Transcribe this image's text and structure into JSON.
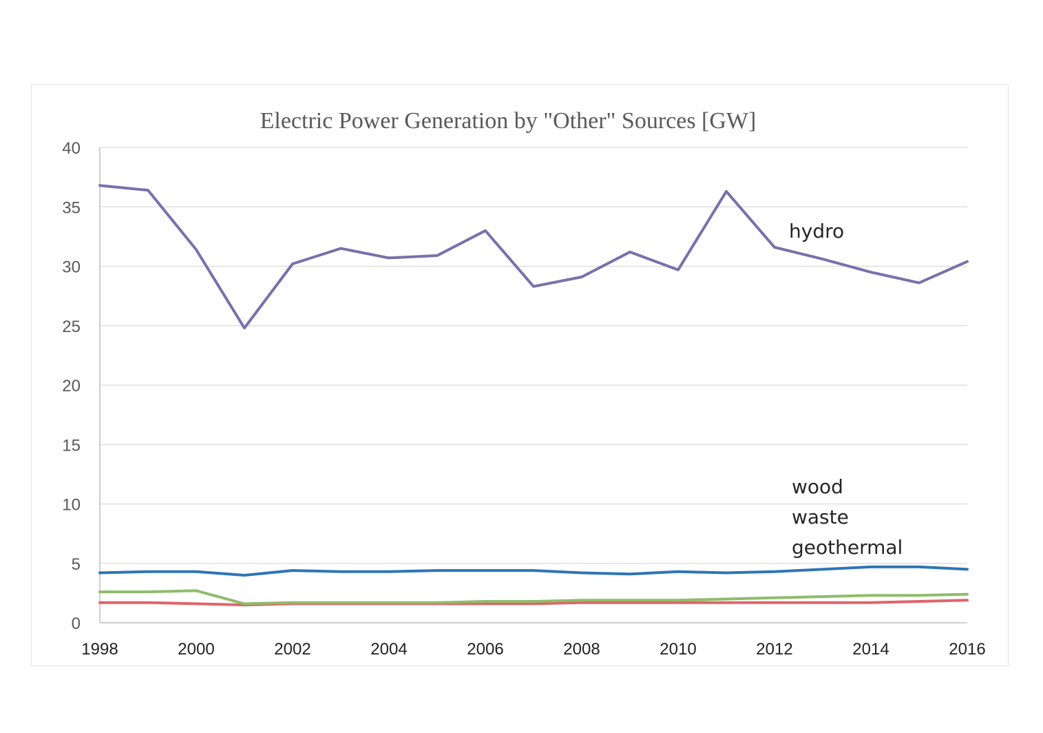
{
  "chart_data": {
    "type": "line",
    "title": "Electric Power Generation by \"Other\" Sources [GW]",
    "xlabel": "",
    "ylabel": "",
    "x": [
      1998,
      1999,
      2000,
      2001,
      2002,
      2003,
      2004,
      2005,
      2006,
      2007,
      2008,
      2009,
      2010,
      2011,
      2012,
      2013,
      2014,
      2015,
      2016
    ],
    "x_tick_labels": [
      "1998",
      "2000",
      "2002",
      "2004",
      "2006",
      "2008",
      "2010",
      "2012",
      "2014",
      "2016"
    ],
    "y_tick_labels": [
      "0",
      "5",
      "10",
      "15",
      "20",
      "25",
      "30",
      "35",
      "40"
    ],
    "xlim": [
      1998,
      2016
    ],
    "ylim": [
      0,
      40
    ],
    "grid": true,
    "legend": "none",
    "series": [
      {
        "name": "hydro",
        "color": "#7b6fab",
        "values": [
          36.8,
          36.4,
          31.4,
          24.8,
          30.2,
          31.5,
          30.7,
          30.9,
          33.0,
          28.3,
          29.1,
          31.2,
          29.7,
          36.3,
          31.6,
          30.6,
          29.5,
          28.6,
          30.4
        ]
      },
      {
        "name": "wood",
        "color": "#2e75b6",
        "values": [
          4.2,
          4.3,
          4.3,
          4.0,
          4.4,
          4.3,
          4.3,
          4.4,
          4.4,
          4.4,
          4.2,
          4.1,
          4.3,
          4.2,
          4.3,
          4.5,
          4.7,
          4.7,
          4.5
        ]
      },
      {
        "name": "waste",
        "color": "#8fbc6a",
        "values": [
          2.6,
          2.6,
          2.7,
          1.6,
          1.7,
          1.7,
          1.7,
          1.7,
          1.8,
          1.8,
          1.9,
          1.9,
          1.9,
          2.0,
          2.1,
          2.2,
          2.3,
          2.3,
          2.4
        ]
      },
      {
        "name": "geothermal",
        "color": "#e0646a",
        "values": [
          1.7,
          1.7,
          1.6,
          1.5,
          1.6,
          1.6,
          1.6,
          1.6,
          1.6,
          1.6,
          1.7,
          1.7,
          1.7,
          1.7,
          1.7,
          1.7,
          1.7,
          1.8,
          1.9
        ]
      }
    ],
    "labels": {
      "hydro": "hydro",
      "wood": "wood",
      "waste": "waste",
      "geothermal": "geothermal"
    }
  }
}
